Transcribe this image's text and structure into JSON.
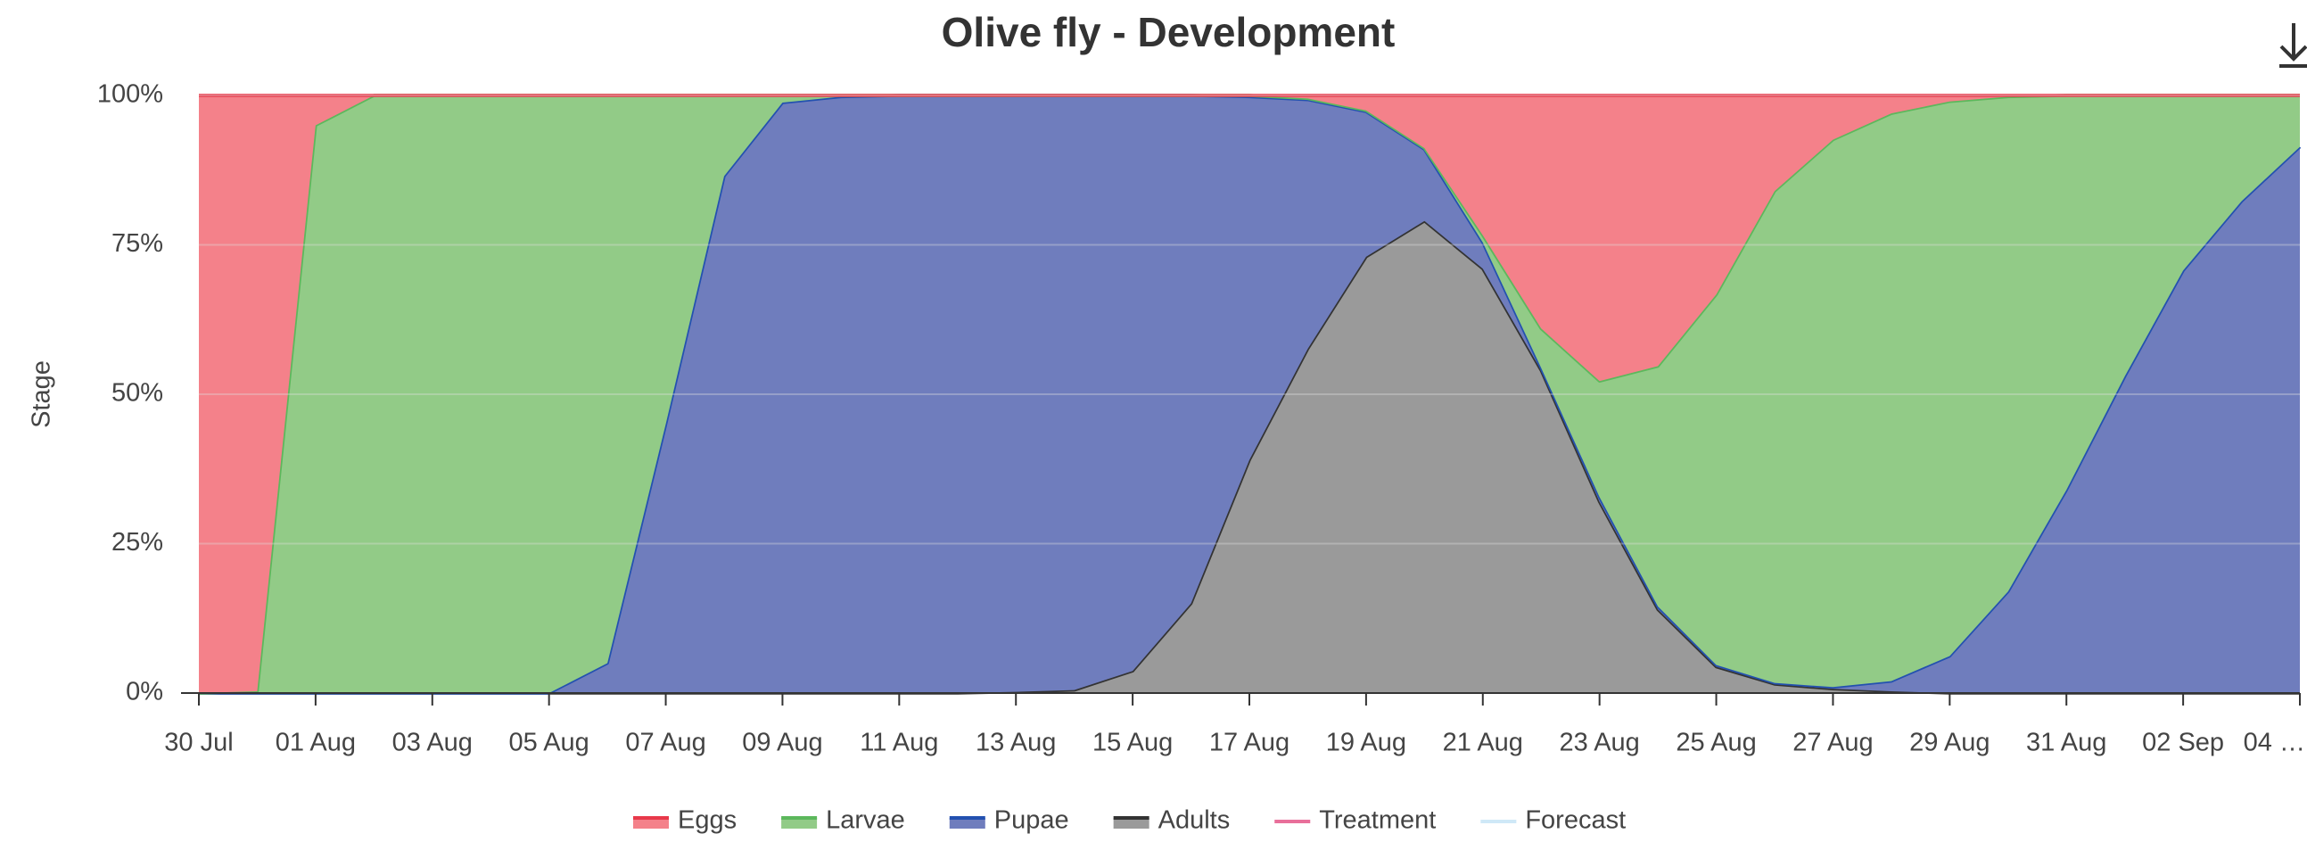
{
  "chart_data": {
    "type": "stacked_area_percent",
    "title": "Olive fly - Development",
    "y_label": "Stage",
    "categories": [
      "30 Jul",
      null,
      "01 Aug",
      null,
      "03 Aug",
      null,
      "05 Aug",
      null,
      "07 Aug",
      null,
      "09 Aug",
      null,
      "11 Aug",
      null,
      "13 Aug",
      null,
      "15 Aug",
      null,
      "17 Aug",
      null,
      "19 Aug",
      null,
      "21 Aug",
      null,
      "23 Aug",
      null,
      "25 Aug",
      null,
      "27 Aug",
      null,
      "29 Aug",
      null,
      "31 Aug",
      null,
      "02 Sep",
      null,
      "04 …"
    ],
    "series": [
      {
        "name": "Eggs",
        "color": "#f4818a",
        "line": "#e8394a",
        "values": [
          100,
          99.7,
          5,
          0,
          0,
          0,
          0,
          0,
          0,
          0,
          0,
          0,
          0,
          0,
          0,
          0,
          0,
          0,
          0,
          0.5,
          2.5,
          8.8,
          23.4,
          39,
          47.8,
          45.3,
          33.3,
          16,
          7.4,
          3,
          1,
          0.2,
          0,
          0,
          0,
          0,
          0
        ]
      },
      {
        "name": "Larvae",
        "color": "#92cb87",
        "line": "#5cb85c",
        "values": [
          0,
          0.3,
          95,
          100,
          100,
          100,
          100,
          95,
          55,
          13.5,
          1.2,
          0.2,
          0,
          0,
          0,
          0,
          0,
          0,
          0.2,
          0.2,
          0.2,
          0.2,
          1.2,
          6.6,
          19.4,
          40.2,
          62,
          82.3,
          91.6,
          95,
          92.8,
          82.8,
          66,
          47,
          29.3,
          17.7,
          8.6
        ]
      },
      {
        "name": "Pupae",
        "color": "#6f7dbd",
        "line": "#2351b0",
        "values": [
          0,
          0,
          0,
          0,
          0,
          0,
          0,
          5,
          45,
          86.5,
          98.8,
          99.8,
          100,
          100,
          99.8,
          99.5,
          96.3,
          85,
          60.8,
          41.7,
          24.3,
          12,
          4.4,
          0.4,
          0.8,
          0.5,
          0.3,
          0.2,
          0.3,
          1.7,
          6.2,
          17,
          34,
          53,
          70.7,
          82.3,
          91.4
        ]
      },
      {
        "name": "Adults",
        "color": "#9a9a9a",
        "line": "#333333",
        "values": [
          0,
          0,
          0,
          0,
          0,
          0,
          0,
          0,
          0,
          0,
          0,
          0,
          0,
          0,
          0.2,
          0.5,
          3.7,
          15,
          39,
          57.6,
          73,
          79,
          71,
          54,
          32,
          14,
          4.4,
          1.5,
          0.7,
          0.3,
          0,
          0,
          0,
          0,
          0,
          0,
          0
        ]
      }
    ],
    "legend_lines": [
      {
        "name": "Treatment",
        "color": "#e86f9a"
      },
      {
        "name": "Forecast",
        "color": "#cfe8f7"
      }
    ],
    "ylim": [
      0,
      100
    ],
    "yticks": [
      {
        "value": 0,
        "label": "0%"
      },
      {
        "value": 25,
        "label": "25%"
      },
      {
        "value": 50,
        "label": "50%"
      },
      {
        "value": 75,
        "label": "75%"
      },
      {
        "value": 100,
        "label": "100%"
      }
    ],
    "grid": true
  }
}
